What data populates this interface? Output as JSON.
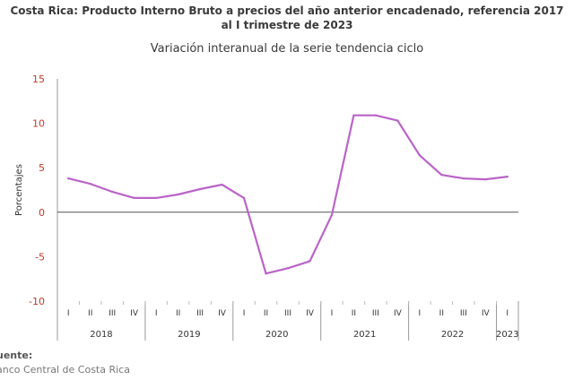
{
  "header": {
    "title_line1": "Costa Rica: Producto Interno Bruto a precios del año anterior encadenado, referencia 2017",
    "title_line2": "al I trimestre de 2023",
    "subtitle": "Variación interanual de la serie tendencia ciclo"
  },
  "footer": {
    "source_label": "uente:",
    "source_value": "anco Central de Costa Rica"
  },
  "colors": {
    "line": "#b964c7",
    "axis_labels": "#c0392b",
    "zero_line": "#555555"
  },
  "chart_data": {
    "type": "line",
    "title": "Variación interanual de la serie tendencia ciclo",
    "ylabel": "Porcentajes",
    "xlabel": "",
    "ylim": [
      -10,
      15
    ],
    "yticks": [
      15,
      10,
      5,
      0,
      -5,
      -10
    ],
    "grid": false,
    "quarters": [
      "I",
      "II",
      "III",
      "IV",
      "I",
      "II",
      "III",
      "IV",
      "I",
      "II",
      "III",
      "IV",
      "I",
      "II",
      "III",
      "IV",
      "I",
      "II",
      "III",
      "IV",
      "I"
    ],
    "years": [
      {
        "label": "2018",
        "quarters": 4
      },
      {
        "label": "2019",
        "quarters": 4
      },
      {
        "label": "2020",
        "quarters": 4
      },
      {
        "label": "2021",
        "quarters": 4
      },
      {
        "label": "2022",
        "quarters": 4
      },
      {
        "label": "2023",
        "quarters": 1
      }
    ],
    "values": [
      3.8,
      3.2,
      2.3,
      1.6,
      1.6,
      2.0,
      2.6,
      3.1,
      1.6,
      -6.9,
      -6.3,
      -5.5,
      -0.3,
      10.9,
      10.9,
      10.3,
      6.4,
      4.2,
      3.8,
      3.7,
      4.0
    ]
  }
}
